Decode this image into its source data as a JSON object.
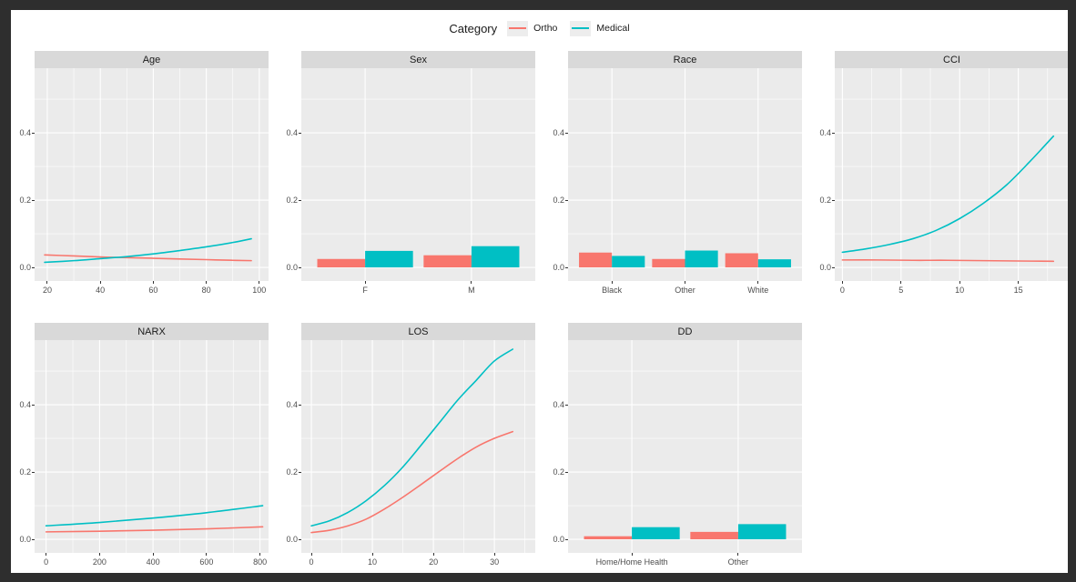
{
  "legend": {
    "title": "Category",
    "items": [
      {
        "label": "Ortho",
        "color": "#F8766D"
      },
      {
        "label": "Medical",
        "color": "#00BFC4"
      }
    ]
  },
  "colors": {
    "ortho": "#F8766D",
    "medical": "#00BFC4",
    "panel_bg": "#EBEBEB",
    "strip_bg": "#D9D9D9",
    "grid": "#FFFFFF",
    "axis_text": "#4D4D4D",
    "title_text": "#1A1A1A",
    "frame_bg": "#2E2E2E",
    "canvas_bg": "#FFFFFF"
  },
  "chart_data": {
    "type": "faceted",
    "description": "Faceted ggplot-style figure; line panels for continuous covariates and dodged bar panels for categorical covariates, comparing Ortho vs Medical.",
    "facet_layout": {
      "rows": [
        [
          "Age",
          "Sex",
          "Race",
          "CCI"
        ],
        [
          "NARX",
          "LOS",
          "DD"
        ]
      ]
    },
    "y_axis": {
      "ylim": [
        -0.0405,
        0.592
      ],
      "major_ticks": [
        0,
        0.2,
        0.4
      ],
      "tick_labels": [
        "0.0",
        "0.2",
        "0.4"
      ],
      "minor_ticks": [
        0.1,
        0.3,
        0.5
      ],
      "grid": "on",
      "legend_position": "top"
    },
    "panels": [
      {
        "title": "Age",
        "type": "line",
        "xlim": [
          15.2,
          103.5
        ],
        "x_ticks": [
          20,
          40,
          60,
          80,
          100
        ],
        "x_minor": [
          30,
          50,
          70,
          90
        ],
        "series": [
          {
            "name": "Ortho",
            "color": "#F8766D",
            "x": [
              19,
              30,
              40,
              50,
              60,
              70,
              80,
              90,
              97
            ],
            "y": [
              0.037,
              0.034,
              0.031,
              0.029,
              0.027,
              0.025,
              0.023,
              0.021,
              0.02
            ]
          },
          {
            "name": "Medical",
            "color": "#00BFC4",
            "x": [
              19,
              30,
              40,
              50,
              60,
              70,
              80,
              90,
              97
            ],
            "y": [
              0.015,
              0.02,
              0.026,
              0.032,
              0.04,
              0.05,
              0.061,
              0.074,
              0.085
            ]
          }
        ]
      },
      {
        "title": "Sex",
        "type": "bar",
        "categories": [
          "F",
          "M"
        ],
        "series": [
          {
            "name": "Ortho",
            "color": "#F8766D",
            "values": [
              0.025,
              0.036
            ]
          },
          {
            "name": "Medical",
            "color": "#00BFC4",
            "values": [
              0.049,
              0.063
            ]
          }
        ]
      },
      {
        "title": "Race",
        "type": "bar",
        "categories": [
          "Black",
          "Other",
          "White"
        ],
        "series": [
          {
            "name": "Ortho",
            "color": "#F8766D",
            "values": [
              0.044,
              0.025,
              0.042
            ]
          },
          {
            "name": "Medical",
            "color": "#00BFC4",
            "values": [
              0.034,
              0.05,
              0.024
            ]
          }
        ]
      },
      {
        "title": "CCI",
        "type": "line",
        "xlim": [
          -0.65,
          19.3
        ],
        "x_ticks": [
          0,
          5,
          10,
          15
        ],
        "x_minor": [
          2.5,
          7.5,
          12.5,
          17.5
        ],
        "series": [
          {
            "name": "Ortho",
            "color": "#F8766D",
            "x": [
              0,
              3,
              6,
              9,
              12,
              15,
              18
            ],
            "y": [
              0.022,
              0.022,
              0.021,
              0.021,
              0.02,
              0.019,
              0.018
            ]
          },
          {
            "name": "Medical",
            "color": "#00BFC4",
            "x": [
              0,
              2,
              4,
              6,
              8,
              10,
              12,
              14,
              16,
              18
            ],
            "y": [
              0.045,
              0.055,
              0.068,
              0.085,
              0.11,
              0.145,
              0.19,
              0.245,
              0.315,
              0.39
            ]
          }
        ]
      },
      {
        "title": "NARX",
        "type": "line",
        "xlim": [
          -43,
          832
        ],
        "x_ticks": [
          0,
          200,
          400,
          600,
          800
        ],
        "x_minor": [
          100,
          300,
          500,
          700
        ],
        "series": [
          {
            "name": "Ortho",
            "color": "#F8766D",
            "x": [
              0,
              200,
              400,
              600,
              810
            ],
            "y": [
              0.022,
              0.024,
              0.027,
              0.031,
              0.037
            ]
          },
          {
            "name": "Medical",
            "color": "#00BFC4",
            "x": [
              0,
              200,
              400,
              600,
              810
            ],
            "y": [
              0.04,
              0.05,
              0.063,
              0.079,
              0.1
            ]
          }
        ]
      },
      {
        "title": "LOS",
        "type": "line",
        "xlim": [
          -1.65,
          36.7
        ],
        "x_ticks": [
          0,
          10,
          20,
          30
        ],
        "x_minor": [
          5,
          15,
          25,
          35
        ],
        "series": [
          {
            "name": "Ortho",
            "color": "#F8766D",
            "x": [
              0,
              3,
              6,
              9,
              12,
              15,
              18,
              21,
              24,
              27,
              30,
              33
            ],
            "y": [
              0.02,
              0.027,
              0.04,
              0.06,
              0.09,
              0.125,
              0.163,
              0.202,
              0.24,
              0.274,
              0.3,
              0.32
            ]
          },
          {
            "name": "Medical",
            "color": "#00BFC4",
            "x": [
              0,
              3,
              6,
              9,
              12,
              15,
              18,
              21,
              24,
              27,
              30,
              33
            ],
            "y": [
              0.04,
              0.055,
              0.08,
              0.115,
              0.16,
              0.215,
              0.28,
              0.347,
              0.414,
              0.472,
              0.53,
              0.565
            ]
          }
        ]
      },
      {
        "title": "DD",
        "type": "bar",
        "categories": [
          "Home/Home Health",
          "Other"
        ],
        "series": [
          {
            "name": "Ortho",
            "color": "#F8766D",
            "values": [
              0.009,
              0.022
            ]
          },
          {
            "name": "Medical",
            "color": "#00BFC4",
            "values": [
              0.036,
              0.045
            ]
          }
        ]
      }
    ]
  }
}
